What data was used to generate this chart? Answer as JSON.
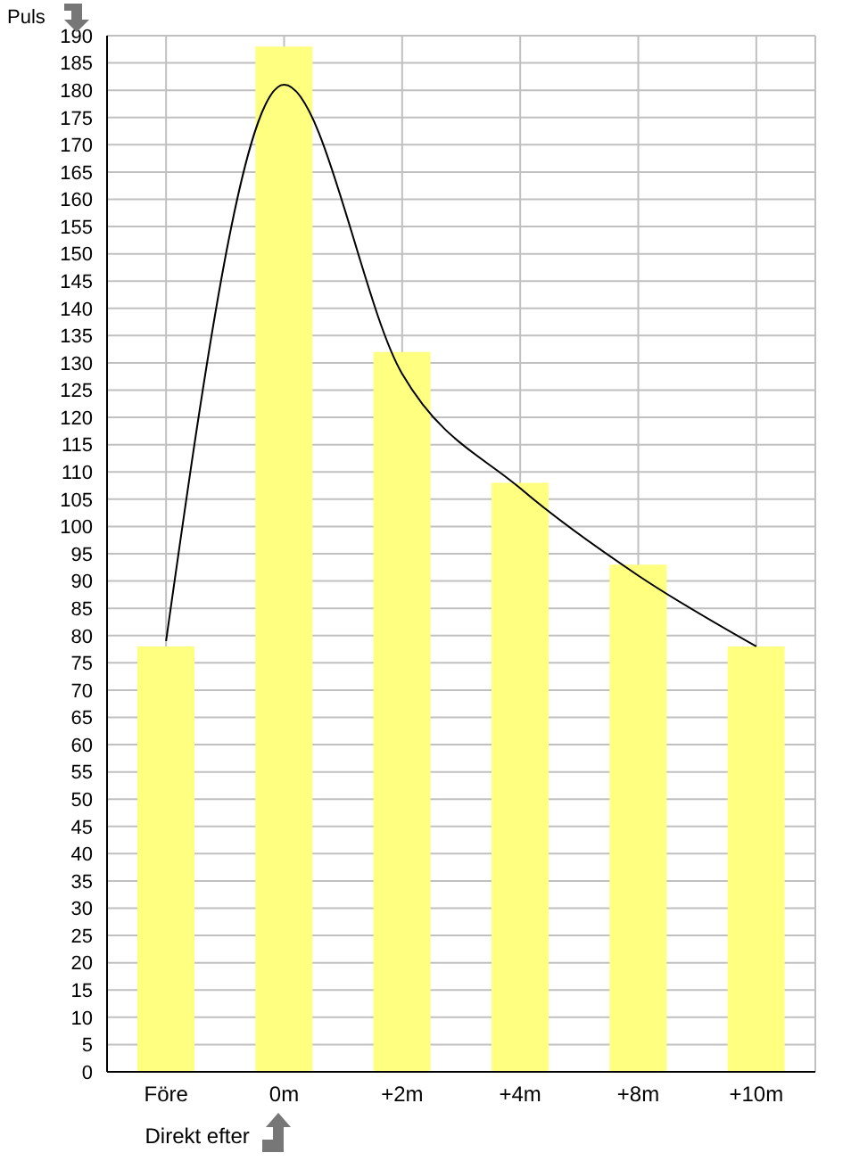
{
  "chart_data": {
    "type": "bar",
    "ylabel": "Puls",
    "categories": [
      "Före",
      "0m",
      "+2m",
      "+4m",
      "+8m",
      "+10m"
    ],
    "series": [
      {
        "color": "#ffff80",
        "values": [
          78,
          188,
          132,
          108,
          93,
          78
        ]
      },
      {
        "type": "line",
        "color": "#000000",
        "marker": "none",
        "values": [
          79,
          181,
          128,
          107,
          91,
          78
        ]
      }
    ],
    "ylim": [
      0,
      190
    ],
    "yticks": [
      0,
      5,
      10,
      15,
      20,
      25,
      30,
      35,
      40,
      45,
      50,
      55,
      60,
      65,
      70,
      75,
      80,
      85,
      90,
      95,
      100,
      105,
      110,
      115,
      120,
      125,
      130,
      135,
      140,
      145,
      150,
      155,
      160,
      165,
      170,
      175,
      180,
      185,
      190
    ],
    "grid": true,
    "annotations": [
      "Direkt efter"
    ]
  }
}
